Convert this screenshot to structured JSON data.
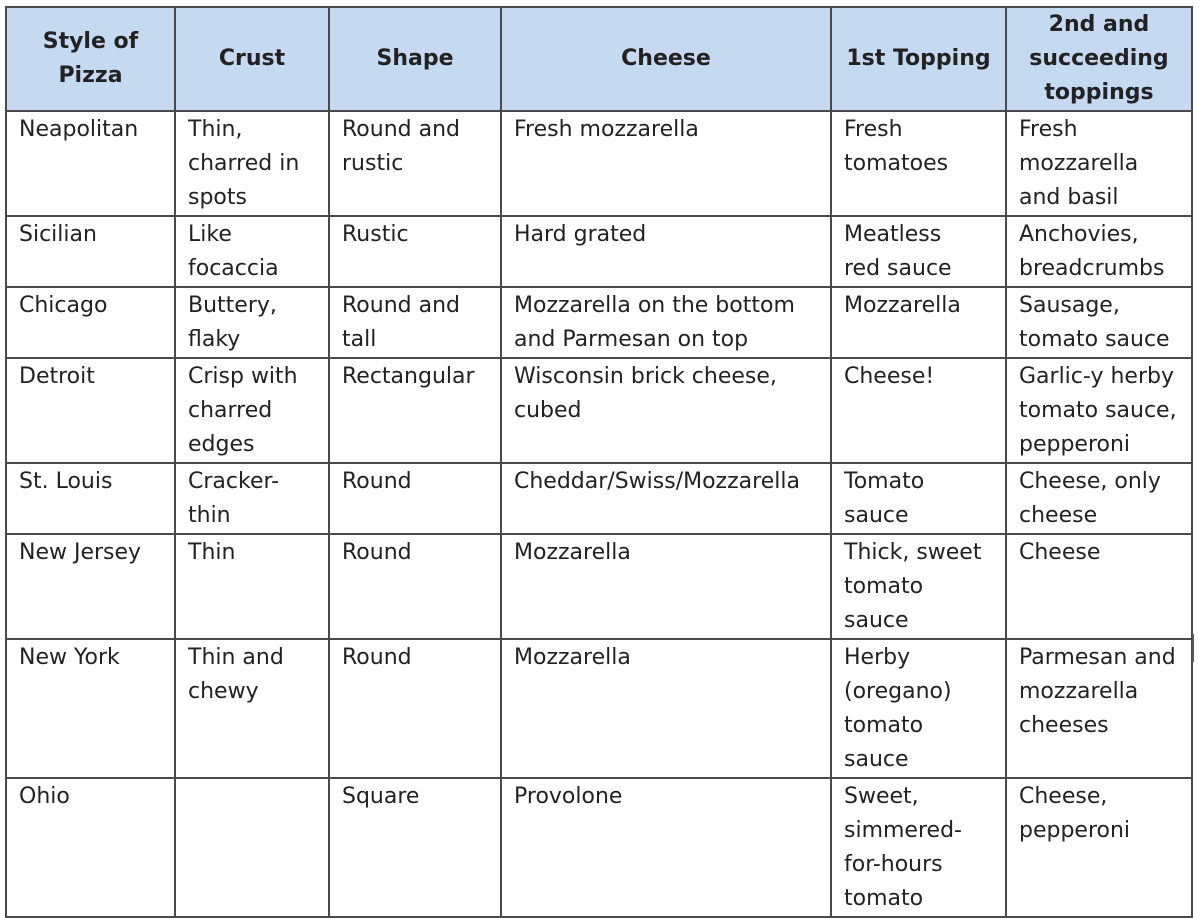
{
  "table": {
    "columns": [
      "Style of\nPizza",
      "Crust",
      "Shape",
      "Cheese",
      "1st Topping",
      "2nd and\nsucceeding\ntoppings"
    ],
    "rows": [
      [
        "Neapolitan",
        "Thin,\ncharred in\nspots",
        "Round and\nrustic",
        "Fresh mozzarella",
        "Fresh\ntomatoes",
        "Fresh\nmozzarella\nand basil"
      ],
      [
        "Sicilian",
        "Like\nfocaccia",
        "Rustic",
        "Hard grated",
        "Meatless\nred sauce",
        "Anchovies,\nbreadcrumbs"
      ],
      [
        "Chicago",
        "Buttery,\nflaky",
        "Round and\ntall",
        "Mozzarella on the bottom\nand Parmesan on top",
        "Mozzarella",
        "Sausage,\ntomato sauce"
      ],
      [
        "Detroit",
        "Crisp with\ncharred\nedges",
        "Rectangular",
        "Wisconsin brick cheese,\ncubed",
        "Cheese!",
        "Garlic-y herby\ntomato sauce,\npepperoni"
      ],
      [
        "St. Louis",
        "Cracker-\nthin",
        "Round",
        "Cheddar/Swiss/Mozzarella",
        "Tomato\nsauce",
        "Cheese, only\ncheese"
      ],
      [
        "New Jersey",
        "Thin",
        "Round",
        "Mozzarella",
        "Thick, sweet\ntomato\nsauce",
        "Cheese"
      ],
      [
        "New York",
        "Thin and\nchewy",
        "Round",
        "Mozzarella",
        "Herby\n(oregano)\ntomato\nsauce",
        "Parmesan and\nmozzarella\ncheeses"
      ],
      [
        "Ohio",
        "",
        "Square",
        "Provolone",
        "Sweet,\nsimmered-\nfor-hours\ntomato",
        "Cheese,\npepperoni"
      ]
    ]
  }
}
